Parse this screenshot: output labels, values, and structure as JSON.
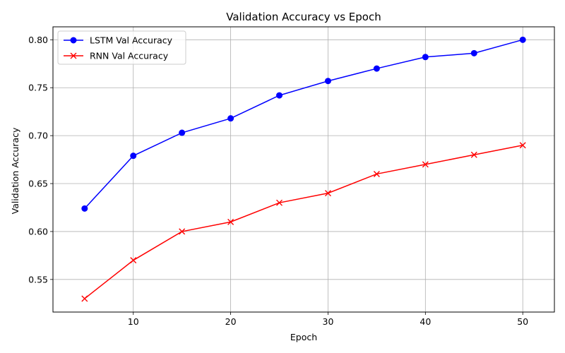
{
  "chart_data": {
    "type": "line",
    "title": "Validation Accuracy vs Epoch",
    "xlabel": "Epoch",
    "ylabel": "Validation Accuracy",
    "xlim": [
      1.75,
      53.25
    ],
    "ylim": [
      0.516,
      0.8135
    ],
    "xticks": [
      10,
      20,
      30,
      40,
      50
    ],
    "yticks": [
      0.55,
      0.6,
      0.65,
      0.7,
      0.75,
      0.8
    ],
    "ytick_labels": [
      "0.55",
      "0.60",
      "0.65",
      "0.70",
      "0.75",
      "0.80"
    ],
    "grid": true,
    "legend_position": "upper-left",
    "x": [
      5,
      10,
      15,
      20,
      25,
      30,
      35,
      40,
      45,
      50
    ],
    "series": [
      {
        "name": "LSTM Val Accuracy",
        "color": "#0000ff",
        "marker": "circle",
        "values": [
          0.624,
          0.679,
          0.703,
          0.718,
          0.742,
          0.757,
          0.77,
          0.782,
          0.786,
          0.8
        ]
      },
      {
        "name": "RNN Val Accuracy",
        "color": "#ff0000",
        "marker": "x",
        "values": [
          0.53,
          0.57,
          0.6,
          0.61,
          0.63,
          0.64,
          0.66,
          0.67,
          0.68,
          0.69
        ]
      }
    ]
  }
}
